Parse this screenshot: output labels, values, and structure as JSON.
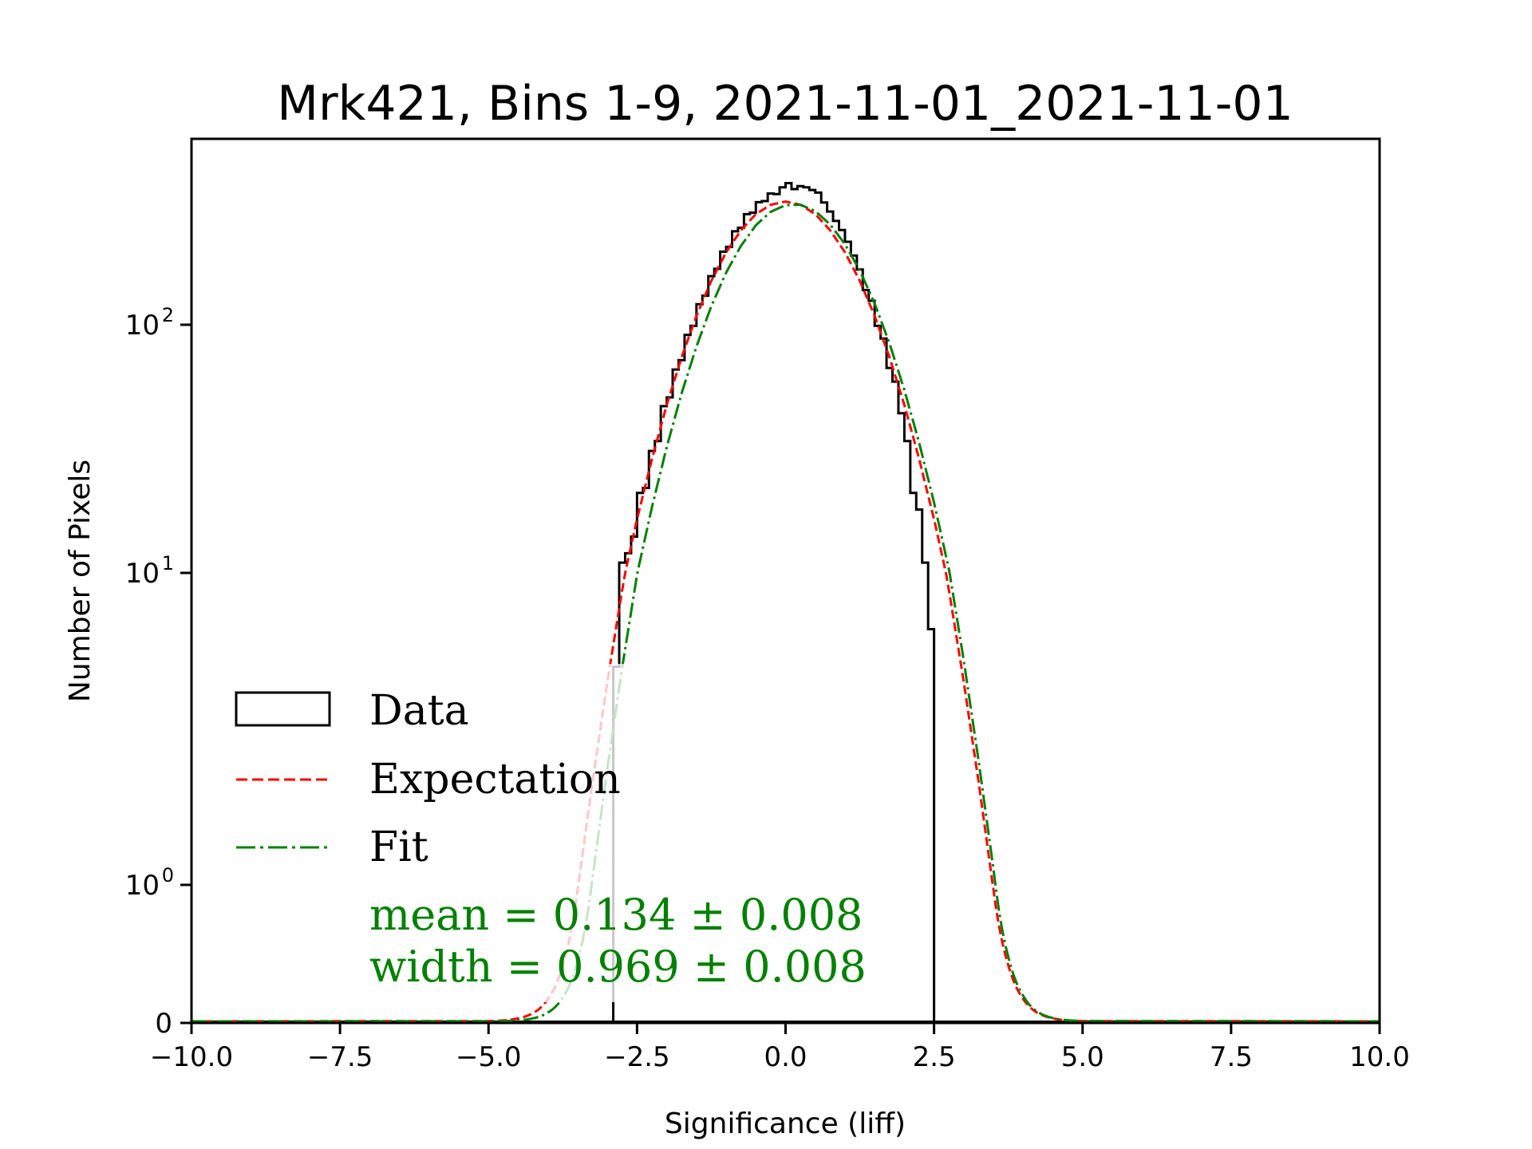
{
  "chart_data": {
    "type": "bar",
    "subtype": "step-histogram with overlaid curves",
    "title": "Mrk421, Bins 1-9, 2021-11-01_2021-11-01",
    "xlabel": "Significance (liff)",
    "ylabel": "Number of Pixels",
    "xlim": [
      -10.0,
      10.0
    ],
    "yscale": "symlog",
    "x_ticks": [
      -10.0,
      -7.5,
      -5.0,
      -2.5,
      0.0,
      2.5,
      5.0,
      7.5,
      10.0
    ],
    "x_tick_labels": [
      "−10.0",
      "−7.5",
      "−5.0",
      "−2.5",
      "0.0",
      "2.5",
      "5.0",
      "7.5",
      "10.0"
    ],
    "y_ticks": [
      {
        "value": 0,
        "base": "0",
        "exp": ""
      },
      {
        "value": 1,
        "base": "10",
        "exp": "0"
      },
      {
        "value": 10,
        "base": "10",
        "exp": "1"
      },
      {
        "value": 100,
        "base": "10",
        "exp": "2"
      }
    ],
    "grid": false,
    "legend": {
      "placement": "lower-left",
      "entries": [
        {
          "label": "Data",
          "style": "box",
          "color": "#000000"
        },
        {
          "label": "Expectation",
          "style": "dashed",
          "color": "#ff0000"
        },
        {
          "label": "Fit",
          "style": "dashdot",
          "color": "#008000"
        }
      ]
    },
    "annotations": [
      {
        "text": "mean = 0.134 ± 0.008",
        "color": "#008000"
      },
      {
        "text": "width = 0.969 ± 0.008",
        "color": "#008000"
      }
    ],
    "histogram": {
      "name": "Data",
      "color": "#000000",
      "bin_start": -2.9,
      "bin_width": 0.1,
      "counts": [
        5,
        11,
        12,
        14,
        21,
        22,
        31,
        34,
        47,
        51,
        66,
        72,
        91,
        99,
        121,
        131,
        157,
        168,
        197,
        206,
        238,
        246,
        279,
        283,
        312,
        315,
        338,
        336,
        358,
        372,
        352,
        362,
        358,
        349,
        341,
        311,
        286,
        262,
        241,
        216,
        190,
        167,
        138,
        125,
        99,
        88,
        67,
        59,
        44,
        34,
        21,
        18,
        11,
        6.6
      ]
    },
    "series": [
      {
        "name": "Expectation",
        "color": "#ff0000",
        "style": "dashed",
        "x": [
          -10,
          -5,
          -4.5,
          -4,
          -3.75,
          -3.5,
          -3.25,
          -3,
          -2.75,
          -2.5,
          -2.25,
          -2,
          -1.75,
          -1.5,
          -1.25,
          -1,
          -0.75,
          -0.5,
          -0.25,
          0,
          0.25,
          0.5,
          0.75,
          1,
          1.25,
          1.5,
          1.75,
          2,
          2.25,
          2.5,
          2.75,
          3,
          3.25,
          3.5,
          3.75,
          4,
          4.5,
          5,
          10
        ],
        "y": [
          0,
          0.002,
          0.022,
          0.162,
          0.405,
          0.953,
          2.11,
          4.42,
          8.71,
          16.2,
          28.3,
          46.8,
          72.8,
          107,
          148,
          193,
          237,
          275,
          300,
          309,
          300,
          275,
          237,
          193,
          148,
          107,
          72.8,
          46.8,
          28.3,
          16.2,
          8.71,
          4.42,
          2.11,
          0.953,
          0.405,
          0.162,
          0.022,
          0.002,
          0
        ]
      },
      {
        "name": "Fit",
        "color": "#008000",
        "style": "dashdot",
        "x": [
          -10,
          -5,
          -4.5,
          -4,
          -3.75,
          -3.5,
          -3.25,
          -3,
          -2.75,
          -2.5,
          -2.25,
          -2,
          -1.75,
          -1.5,
          -1.25,
          -1,
          -0.75,
          -0.5,
          -0.25,
          0,
          0.25,
          0.5,
          0.75,
          1,
          1.25,
          1.5,
          1.75,
          2,
          2.25,
          2.5,
          2.75,
          3,
          3.25,
          3.5,
          3.75,
          4,
          4.5,
          5,
          10
        ],
        "y": [
          0,
          0.0006,
          0.0073,
          0.064,
          0.173,
          0.437,
          1.04,
          2.33,
          4.92,
          9.73,
          18.1,
          31.7,
          52.1,
          80.5,
          117,
          160,
          205,
          248,
          281,
          299,
          300,
          283,
          250,
          208,
          163,
          120,
          82.8,
          53.8,
          32.9,
          18.9,
          10.2,
          5.18,
          2.47,
          1.11,
          0.466,
          0.185,
          0.024,
          0.0024,
          0
        ]
      }
    ]
  }
}
